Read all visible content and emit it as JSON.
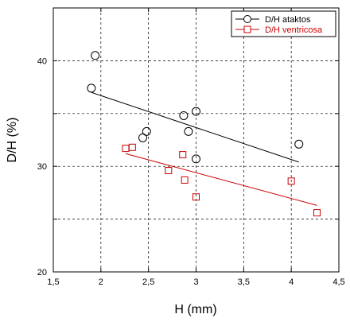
{
  "chart_data": {
    "type": "scatter",
    "title": "",
    "xlabel": "H (mm)",
    "ylabel": "D/H (%)",
    "xlim": [
      1.5,
      4.5
    ],
    "ylim": [
      20,
      45
    ],
    "x_ticks": [
      "1,5",
      "2",
      "2,5",
      "3",
      "3,5",
      "4",
      "4,5"
    ],
    "x_tick_values": [
      1.5,
      2,
      2.5,
      3,
      3.5,
      4,
      4.5
    ],
    "y_ticks": [
      "20",
      "30",
      "40"
    ],
    "y_tick_values": [
      20,
      30,
      40
    ],
    "grid": "dashed",
    "legend_position": "top-right",
    "series": [
      {
        "name": "D/H ataktоs",
        "marker": "circle",
        "color": "#000000",
        "points": [
          {
            "x": 1.94,
            "y": 40.5
          },
          {
            "x": 1.9,
            "y": 37.4
          },
          {
            "x": 2.44,
            "y": 32.7
          },
          {
            "x": 2.48,
            "y": 33.3
          },
          {
            "x": 2.87,
            "y": 34.8
          },
          {
            "x": 2.92,
            "y": 33.3
          },
          {
            "x": 3.0,
            "y": 35.2
          },
          {
            "x": 3.0,
            "y": 30.7
          },
          {
            "x": 4.08,
            "y": 32.1
          }
        ],
        "trend": [
          {
            "x": 1.9,
            "y": 37.0
          },
          {
            "x": 4.08,
            "y": 30.4
          }
        ]
      },
      {
        "name": "D/H ventricosa",
        "marker": "square",
        "color": "#cc0000",
        "points": [
          {
            "x": 2.26,
            "y": 31.7
          },
          {
            "x": 2.33,
            "y": 31.8
          },
          {
            "x": 2.71,
            "y": 29.6
          },
          {
            "x": 2.86,
            "y": 31.1
          },
          {
            "x": 2.88,
            "y": 28.7
          },
          {
            "x": 3.0,
            "y": 27.1
          },
          {
            "x": 4.0,
            "y": 28.6
          },
          {
            "x": 4.27,
            "y": 25.6
          }
        ],
        "trend": [
          {
            "x": 2.26,
            "y": 31.2
          },
          {
            "x": 4.27,
            "y": 26.3
          }
        ]
      }
    ]
  }
}
